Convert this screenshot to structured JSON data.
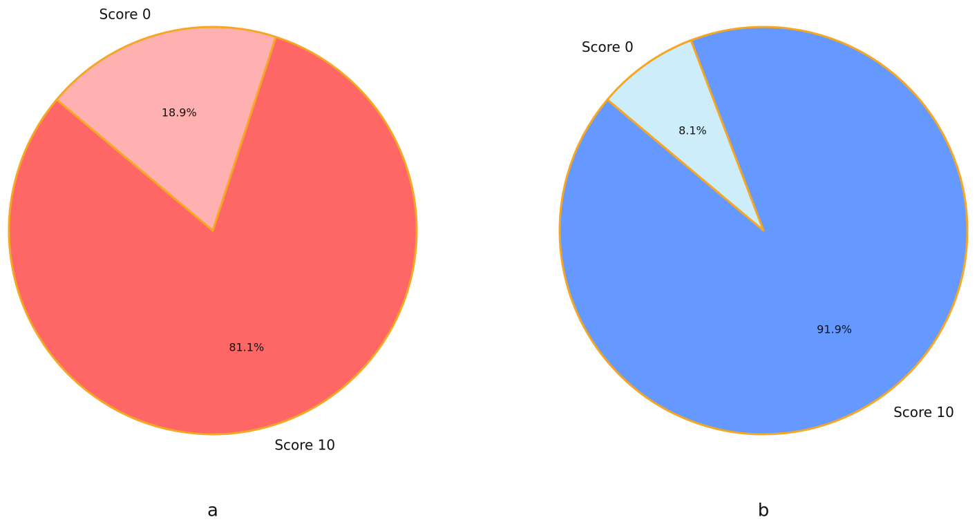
{
  "chart_data": [
    {
      "type": "pie",
      "title": "a",
      "categories": [
        "Score 0",
        "Score 10"
      ],
      "values": [
        18.9,
        81.1
      ],
      "value_labels": [
        "18.9%",
        "81.1%"
      ],
      "colors": [
        "#ffb1b1",
        "#ff6666"
      ],
      "edgecolor": "#f5a623"
    },
    {
      "type": "pie",
      "title": "b",
      "categories": [
        "Score 0",
        "Score 10"
      ],
      "values": [
        8.1,
        91.9
      ],
      "value_labels": [
        "8.1%",
        "91.9%"
      ],
      "colors": [
        "#cdedfb",
        "#6699ff"
      ],
      "edgecolor": "#f5a623"
    }
  ]
}
